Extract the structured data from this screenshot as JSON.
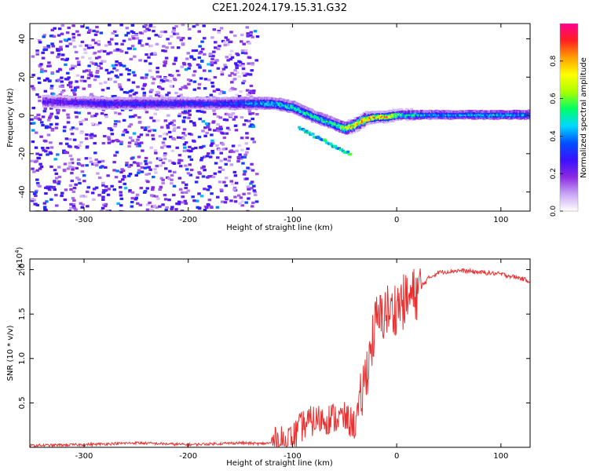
{
  "title": "C2E1.2024.179.15.31.G32",
  "chart_data": [
    {
      "type": "heatmap",
      "title": "C2E1.2024.179.15.31.G32",
      "xlabel": "Height of straight line (km)",
      "ylabel": "Frequency (Hz)",
      "xlim": [
        -352,
        128
      ],
      "ylim": [
        -50,
        48
      ],
      "x_ticks": [
        -300,
        -200,
        -100,
        0,
        100
      ],
      "y_ticks": [
        -40,
        -20,
        0,
        20,
        40
      ],
      "colorbar": {
        "label": "Normalized spectral amplitude",
        "range": [
          0,
          1
        ],
        "ticks": [
          0.0,
          0.2,
          0.4,
          0.6,
          0.8
        ],
        "colormap": [
          "#ffffff",
          "#c9a6f5",
          "#8a2be2",
          "#3a10ff",
          "#0050ff",
          "#00d8ff",
          "#00ff66",
          "#aaff00",
          "#ffff00",
          "#ffa000",
          "#ff2020",
          "#ff0090"
        ]
      },
      "ridge": {
        "x": [
          -330,
          -280,
          -230,
          -180,
          -150,
          -120,
          -100,
          -80,
          -60,
          -50,
          -40,
          -30,
          -20,
          -10,
          0,
          30,
          60,
          100,
          128
        ],
        "y": [
          8,
          7,
          7,
          7,
          7,
          7,
          5,
          0,
          -4,
          -6,
          -4,
          -1,
          0,
          0,
          1,
          1,
          1,
          1,
          1
        ],
        "amplitude": [
          0.25,
          0.3,
          0.3,
          0.3,
          0.35,
          0.45,
          0.5,
          0.5,
          0.5,
          0.7,
          0.75,
          0.8,
          0.85,
          0.85,
          0.55,
          0.4,
          0.4,
          0.45,
          0.4
        ]
      }
    },
    {
      "type": "line",
      "xlabel": "Height of straight line (km)",
      "ylabel": "SNR (10 * v/v)",
      "y_multiplier": "(x10",
      "y_multiplier_exp": "4",
      "xlim": [
        -352,
        128
      ],
      "ylim": [
        0,
        2.12
      ],
      "x_ticks": [
        -300,
        -200,
        -100,
        0,
        100
      ],
      "y_ticks": [
        0.5,
        1.0,
        1.5,
        2.0
      ],
      "series": [
        {
          "color": "#e83030",
          "x": [
            -352,
            -300,
            -250,
            -200,
            -150,
            -130,
            -110,
            -100,
            -90,
            -80,
            -70,
            -60,
            -50,
            -40,
            -35,
            -30,
            -25,
            -20,
            -15,
            -10,
            -5,
            0,
            10,
            20,
            30,
            40,
            60,
            80,
            100,
            120,
            128
          ],
          "y": [
            0.02,
            0.03,
            0.05,
            0.03,
            0.05,
            0.04,
            0.06,
            0.1,
            0.25,
            0.3,
            0.32,
            0.33,
            0.33,
            0.25,
            0.5,
            0.8,
            1.1,
            1.4,
            1.45,
            1.55,
            1.5,
            1.6,
            1.65,
            1.75,
            1.9,
            1.97,
            1.99,
            1.97,
            1.95,
            1.9,
            1.87
          ]
        }
      ]
    }
  ]
}
